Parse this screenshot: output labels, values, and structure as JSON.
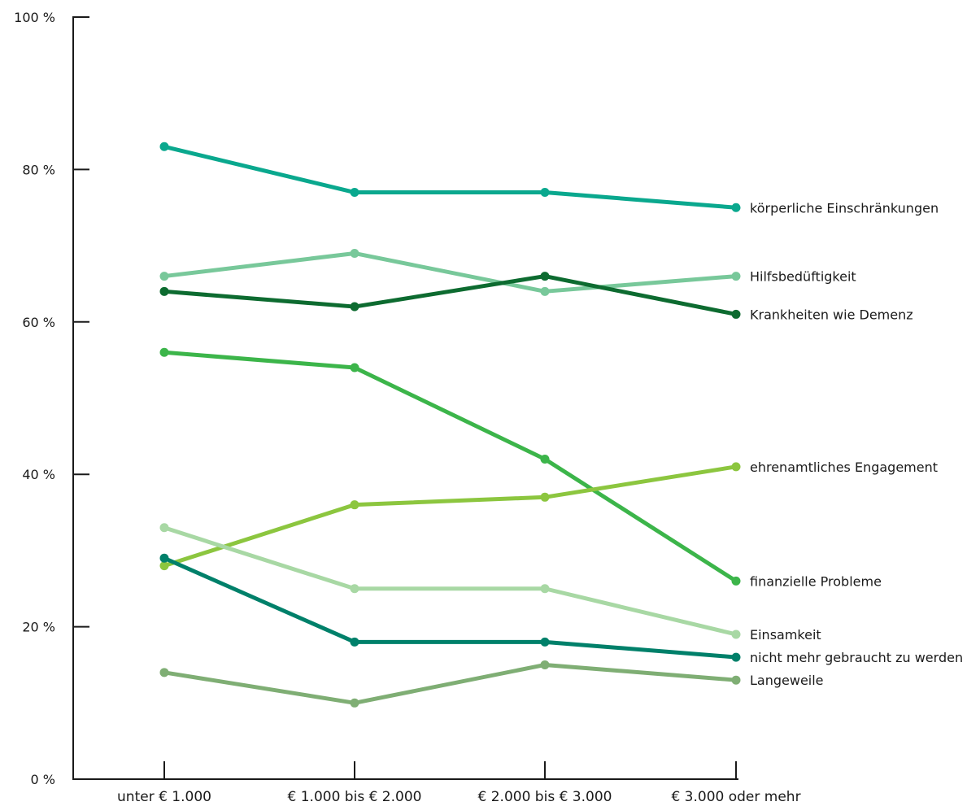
{
  "chart_data": {
    "type": "line",
    "title": "",
    "xlabel": "",
    "ylabel": "",
    "ylim": [
      0,
      100
    ],
    "yticks": [
      {
        "value": 0,
        "label": "0 %"
      },
      {
        "value": 20,
        "label": "20 %"
      },
      {
        "value": 40,
        "label": "40 %"
      },
      {
        "value": 60,
        "label": "60 %"
      },
      {
        "value": 80,
        "label": "80 %"
      },
      {
        "value": 100,
        "label": "100 %"
      }
    ],
    "categories": [
      "unter € 1.000",
      "€ 1.000 bis € 2.000",
      "€ 2.000 bis € 3.000",
      "€ 3.000 oder mehr"
    ],
    "grid": false,
    "legend": "direct labels at right end of lines",
    "series": [
      {
        "name": "körperliche Einschränkungen",
        "color": "#0aa88e",
        "values": [
          83,
          77,
          77,
          75
        ]
      },
      {
        "name": "Hilfsbedüftigkeit",
        "color": "#78c89a",
        "values": [
          66,
          69,
          64,
          66
        ]
      },
      {
        "name": "Krankheiten wie Demenz",
        "color": "#0d6b30",
        "values": [
          64,
          62,
          66,
          61
        ]
      },
      {
        "name": "finanzielle Probleme",
        "color": "#3cb54a",
        "values": [
          56,
          54,
          42,
          26
        ]
      },
      {
        "name": "ehrenamtliches Engagement",
        "color": "#8cc63f",
        "values": [
          28,
          36,
          37,
          41
        ]
      },
      {
        "name": "Einsamkeit",
        "color": "#a8d8a4",
        "values": [
          33,
          25,
          25,
          19
        ]
      },
      {
        "name": "nicht mehr gebraucht zu werden",
        "color": "#00806a",
        "values": [
          29,
          18,
          18,
          16
        ]
      },
      {
        "name": "Langeweile",
        "color": "#7fae74",
        "values": [
          14,
          10,
          15,
          13
        ]
      }
    ]
  }
}
